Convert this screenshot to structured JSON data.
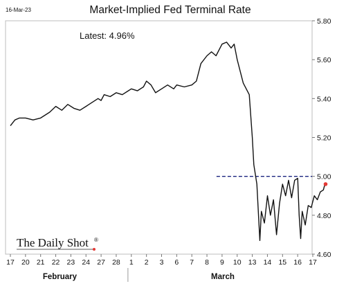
{
  "date_stamp": "16-Mar-23",
  "chart_data": {
    "type": "line",
    "title": "Market-Implied Fed Terminal Rate",
    "annotation": "Latest:  4.96%",
    "watermark": "The Daily Shot",
    "watermark_mark": "®",
    "xlabel": "",
    "ylabel": "",
    "ylim": [
      4.6,
      5.8
    ],
    "y_ticks": [
      "4.60",
      "4.80",
      "5.00",
      "5.20",
      "5.40",
      "5.60",
      "5.80"
    ],
    "y_ticks_values": [
      4.6,
      4.8,
      5.0,
      5.2,
      5.4,
      5.6,
      5.8
    ],
    "x_tick_labels": [
      "17",
      "20",
      "21",
      "22",
      "23",
      "24",
      "27",
      "28",
      "1",
      "2",
      "3",
      "6",
      "7",
      "8",
      "9",
      "10",
      "13",
      "14",
      "15",
      "16",
      "17"
    ],
    "x_groups": [
      {
        "label": "February"
      },
      {
        "label": "March"
      }
    ],
    "grid": false,
    "reference_line": {
      "y": 5.0,
      "style": "dashed",
      "color": "#1a237e"
    },
    "latest_marker": {
      "y": 4.96,
      "color": "#e53935"
    },
    "line_color": "#111111",
    "series": [
      {
        "values": [
          [
            0,
            5.26
          ],
          [
            0.3,
            5.29
          ],
          [
            0.6,
            5.3
          ],
          [
            1,
            5.3
          ],
          [
            1.5,
            5.29
          ],
          [
            2,
            5.3
          ],
          [
            2.6,
            5.33
          ],
          [
            3,
            5.36
          ],
          [
            3.4,
            5.34
          ],
          [
            3.8,
            5.37
          ],
          [
            4.2,
            5.35
          ],
          [
            4.6,
            5.34
          ],
          [
            5,
            5.36
          ],
          [
            5.4,
            5.38
          ],
          [
            5.8,
            5.4
          ],
          [
            6,
            5.39
          ],
          [
            6.2,
            5.42
          ],
          [
            6.6,
            5.41
          ],
          [
            7,
            5.43
          ],
          [
            7.4,
            5.42
          ],
          [
            7.8,
            5.44
          ],
          [
            8,
            5.45
          ],
          [
            8.4,
            5.44
          ],
          [
            8.8,
            5.46
          ],
          [
            9,
            5.49
          ],
          [
            9.3,
            5.47
          ],
          [
            9.6,
            5.43
          ],
          [
            10,
            5.45
          ],
          [
            10.4,
            5.47
          ],
          [
            10.8,
            5.45
          ],
          [
            11,
            5.47
          ],
          [
            11.5,
            5.46
          ],
          [
            12,
            5.47
          ],
          [
            12.3,
            5.49
          ],
          [
            12.6,
            5.58
          ],
          [
            13,
            5.62
          ],
          [
            13.3,
            5.64
          ],
          [
            13.6,
            5.62
          ],
          [
            14,
            5.68
          ],
          [
            14.3,
            5.69
          ],
          [
            14.6,
            5.66
          ],
          [
            14.8,
            5.68
          ],
          [
            15,
            5.6
          ],
          [
            15.4,
            5.48
          ],
          [
            15.8,
            5.42
          ],
          [
            16,
            5.2
          ],
          [
            16.1,
            5.06
          ],
          [
            16.3,
            4.96
          ],
          [
            16.5,
            4.67
          ],
          [
            16.6,
            4.82
          ],
          [
            16.8,
            4.76
          ],
          [
            17,
            4.9
          ],
          [
            17.2,
            4.8
          ],
          [
            17.4,
            4.88
          ],
          [
            17.6,
            4.7
          ],
          [
            17.8,
            4.86
          ],
          [
            18,
            4.96
          ],
          [
            18.2,
            4.9
          ],
          [
            18.4,
            4.98
          ],
          [
            18.6,
            4.89
          ],
          [
            18.8,
            4.98
          ],
          [
            19,
            4.99
          ],
          [
            19.1,
            4.8
          ],
          [
            19.2,
            4.68
          ],
          [
            19.3,
            4.82
          ],
          [
            19.5,
            4.75
          ],
          [
            19.7,
            4.85
          ],
          [
            19.9,
            4.84
          ],
          [
            20.1,
            4.9
          ],
          [
            20.3,
            4.88
          ],
          [
            20.5,
            4.92
          ],
          [
            20.7,
            4.93
          ],
          [
            20.8,
            4.96
          ]
        ]
      }
    ]
  }
}
